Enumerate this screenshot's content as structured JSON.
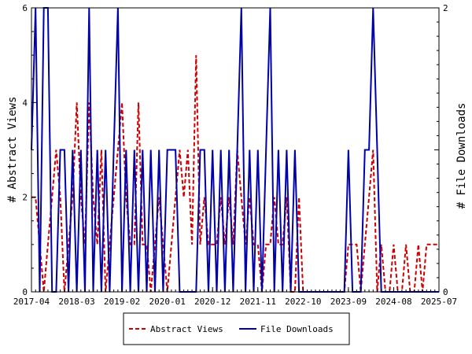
{
  "chart_data": {
    "type": "line",
    "title": "",
    "xlabel": "",
    "ylabel_left": "# Abstract Views",
    "ylabel_right": "# File Downloads",
    "x_ticks": [
      "2017-04",
      "2018-03",
      "2019-02",
      "2020-01",
      "2020-12",
      "2021-11",
      "2022-10",
      "2023-09",
      "2024-08",
      "2025-07"
    ],
    "y_left_ticks": [
      "0",
      "2",
      "4",
      "6"
    ],
    "y_right_ticks": [
      "0",
      "2"
    ],
    "y_left_range": [
      0,
      6
    ],
    "y_right_range": [
      0,
      2
    ],
    "x_range": [
      "2017-04",
      "2025-07"
    ],
    "grid": false,
    "legend_position": "bottom",
    "series": [
      {
        "name": "Abstract Views",
        "axis": "left",
        "color": "#cc0000",
        "style": "dashed",
        "points": [
          [
            "2017-04",
            2
          ],
          [
            "2017-05",
            2
          ],
          [
            "2017-06",
            1
          ],
          [
            "2017-07",
            0
          ],
          [
            "2017-08",
            1
          ],
          [
            "2017-09",
            2
          ],
          [
            "2017-10",
            3
          ],
          [
            "2017-11",
            2
          ],
          [
            "2017-12",
            0
          ],
          [
            "2018-01",
            1
          ],
          [
            "2018-02",
            2
          ],
          [
            "2018-03",
            4
          ],
          [
            "2018-04",
            2
          ],
          [
            "2018-05",
            1
          ],
          [
            "2018-06",
            4
          ],
          [
            "2018-07",
            2
          ],
          [
            "2018-08",
            1
          ],
          [
            "2018-09",
            3
          ],
          [
            "2018-10",
            0
          ],
          [
            "2018-11",
            1
          ],
          [
            "2018-12",
            2
          ],
          [
            "2019-01",
            3
          ],
          [
            "2019-02",
            4
          ],
          [
            "2019-03",
            2
          ],
          [
            "2019-04",
            1
          ],
          [
            "2019-05",
            1
          ],
          [
            "2019-06",
            4
          ],
          [
            "2019-07",
            1
          ],
          [
            "2019-08",
            1
          ],
          [
            "2019-09",
            0
          ],
          [
            "2019-10",
            1
          ],
          [
            "2019-11",
            2
          ],
          [
            "2019-12",
            1
          ],
          [
            "2020-01",
            0
          ],
          [
            "2020-02",
            1
          ],
          [
            "2020-03",
            2
          ],
          [
            "2020-04",
            3
          ],
          [
            "2020-05",
            2
          ],
          [
            "2020-06",
            3
          ],
          [
            "2020-07",
            1
          ],
          [
            "2020-08",
            5
          ],
          [
            "2020-09",
            1
          ],
          [
            "2020-10",
            2
          ],
          [
            "2020-11",
            1
          ],
          [
            "2020-12",
            1
          ],
          [
            "2021-01",
            1
          ],
          [
            "2021-02",
            2
          ],
          [
            "2021-03",
            1
          ],
          [
            "2021-04",
            2
          ],
          [
            "2021-05",
            1
          ],
          [
            "2021-06",
            3
          ],
          [
            "2021-07",
            2
          ],
          [
            "2021-08",
            1
          ],
          [
            "2021-09",
            2
          ],
          [
            "2021-10",
            1
          ],
          [
            "2021-11",
            1
          ],
          [
            "2021-12",
            0
          ],
          [
            "2022-01",
            1
          ],
          [
            "2022-02",
            1
          ],
          [
            "2022-03",
            2
          ],
          [
            "2022-04",
            1
          ],
          [
            "2022-05",
            1
          ],
          [
            "2022-06",
            2
          ],
          [
            "2022-07",
            0
          ],
          [
            "2022-08",
            0
          ],
          [
            "2022-09",
            2
          ],
          [
            "2022-10",
            0
          ],
          [
            "2022-11",
            0
          ],
          [
            "2022-12",
            0
          ],
          [
            "2023-01",
            0
          ],
          [
            "2023-02",
            0
          ],
          [
            "2023-03",
            0
          ],
          [
            "2023-04",
            0
          ],
          [
            "2023-05",
            0
          ],
          [
            "2023-06",
            0
          ],
          [
            "2023-07",
            0
          ],
          [
            "2023-08",
            0
          ],
          [
            "2023-09",
            1
          ],
          [
            "2023-10",
            1
          ],
          [
            "2023-11",
            1
          ],
          [
            "2023-12",
            0
          ],
          [
            "2024-01",
            1
          ],
          [
            "2024-02",
            2
          ],
          [
            "2024-03",
            3
          ],
          [
            "2024-04",
            0
          ],
          [
            "2024-05",
            1
          ],
          [
            "2024-06",
            0
          ],
          [
            "2024-07",
            0
          ],
          [
            "2024-08",
            1
          ],
          [
            "2024-09",
            0
          ],
          [
            "2024-10",
            0
          ],
          [
            "2024-11",
            1
          ],
          [
            "2024-12",
            0
          ],
          [
            "2025-01",
            0
          ],
          [
            "2025-02",
            1
          ],
          [
            "2025-03",
            0
          ],
          [
            "2025-04",
            1
          ],
          [
            "2025-05",
            1
          ],
          [
            "2025-06",
            1
          ],
          [
            "2025-07",
            1
          ]
        ]
      },
      {
        "name": "File Downloads",
        "axis": "right",
        "color": "#0000aa",
        "style": "solid",
        "points": [
          [
            "2017-04",
            1
          ],
          [
            "2017-05",
            2
          ],
          [
            "2017-06",
            0
          ],
          [
            "2017-07",
            2
          ],
          [
            "2017-08",
            2
          ],
          [
            "2017-09",
            0
          ],
          [
            "2017-10",
            0
          ],
          [
            "2017-11",
            1
          ],
          [
            "2017-12",
            1
          ],
          [
            "2018-01",
            0
          ],
          [
            "2018-02",
            1
          ],
          [
            "2018-03",
            0
          ],
          [
            "2018-04",
            1
          ],
          [
            "2018-05",
            0
          ],
          [
            "2018-06",
            2
          ],
          [
            "2018-07",
            0
          ],
          [
            "2018-08",
            1
          ],
          [
            "2018-09",
            0
          ],
          [
            "2018-10",
            1
          ],
          [
            "2018-11",
            0
          ],
          [
            "2018-12",
            1
          ],
          [
            "2019-01",
            2
          ],
          [
            "2019-02",
            0
          ],
          [
            "2019-03",
            1
          ],
          [
            "2019-04",
            0
          ],
          [
            "2019-05",
            1
          ],
          [
            "2019-06",
            0
          ],
          [
            "2019-07",
            1
          ],
          [
            "2019-08",
            0
          ],
          [
            "2019-09",
            1
          ],
          [
            "2019-10",
            0
          ],
          [
            "2019-11",
            1
          ],
          [
            "2019-12",
            0
          ],
          [
            "2020-01",
            1
          ],
          [
            "2020-02",
            1
          ],
          [
            "2020-03",
            1
          ],
          [
            "2020-04",
            0
          ],
          [
            "2020-05",
            0
          ],
          [
            "2020-06",
            0
          ],
          [
            "2020-07",
            0
          ],
          [
            "2020-08",
            0
          ],
          [
            "2020-09",
            1
          ],
          [
            "2020-10",
            1
          ],
          [
            "2020-11",
            0
          ],
          [
            "2020-12",
            1
          ],
          [
            "2021-01",
            0
          ],
          [
            "2021-02",
            1
          ],
          [
            "2021-03",
            0
          ],
          [
            "2021-04",
            1
          ],
          [
            "2021-05",
            0
          ],
          [
            "2021-06",
            1
          ],
          [
            "2021-07",
            2
          ],
          [
            "2021-08",
            0
          ],
          [
            "2021-09",
            1
          ],
          [
            "2021-10",
            0
          ],
          [
            "2021-11",
            1
          ],
          [
            "2021-12",
            0
          ],
          [
            "2022-01",
            1
          ],
          [
            "2022-02",
            2
          ],
          [
            "2022-03",
            0
          ],
          [
            "2022-04",
            1
          ],
          [
            "2022-05",
            0
          ],
          [
            "2022-06",
            1
          ],
          [
            "2022-07",
            0
          ],
          [
            "2022-08",
            1
          ],
          [
            "2022-09",
            0
          ],
          [
            "2022-10",
            0
          ],
          [
            "2022-11",
            0
          ],
          [
            "2022-12",
            0
          ],
          [
            "2023-01",
            0
          ],
          [
            "2023-02",
            0
          ],
          [
            "2023-03",
            0
          ],
          [
            "2023-04",
            0
          ],
          [
            "2023-05",
            0
          ],
          [
            "2023-06",
            0
          ],
          [
            "2023-07",
            0
          ],
          [
            "2023-08",
            0
          ],
          [
            "2023-09",
            1
          ],
          [
            "2023-10",
            0
          ],
          [
            "2023-11",
            0
          ],
          [
            "2023-12",
            0
          ],
          [
            "2024-01",
            1
          ],
          [
            "2024-02",
            1
          ],
          [
            "2024-03",
            2
          ],
          [
            "2024-04",
            1
          ],
          [
            "2024-05",
            0
          ],
          [
            "2024-06",
            0
          ],
          [
            "2024-07",
            0
          ],
          [
            "2024-08",
            0
          ],
          [
            "2024-09",
            0
          ],
          [
            "2024-10",
            0
          ],
          [
            "2024-11",
            0
          ],
          [
            "2024-12",
            0
          ],
          [
            "2025-01",
            0
          ],
          [
            "2025-02",
            0
          ],
          [
            "2025-03",
            0
          ],
          [
            "2025-04",
            0
          ],
          [
            "2025-05",
            0
          ],
          [
            "2025-06",
            0
          ],
          [
            "2025-07",
            0
          ]
        ]
      }
    ]
  }
}
